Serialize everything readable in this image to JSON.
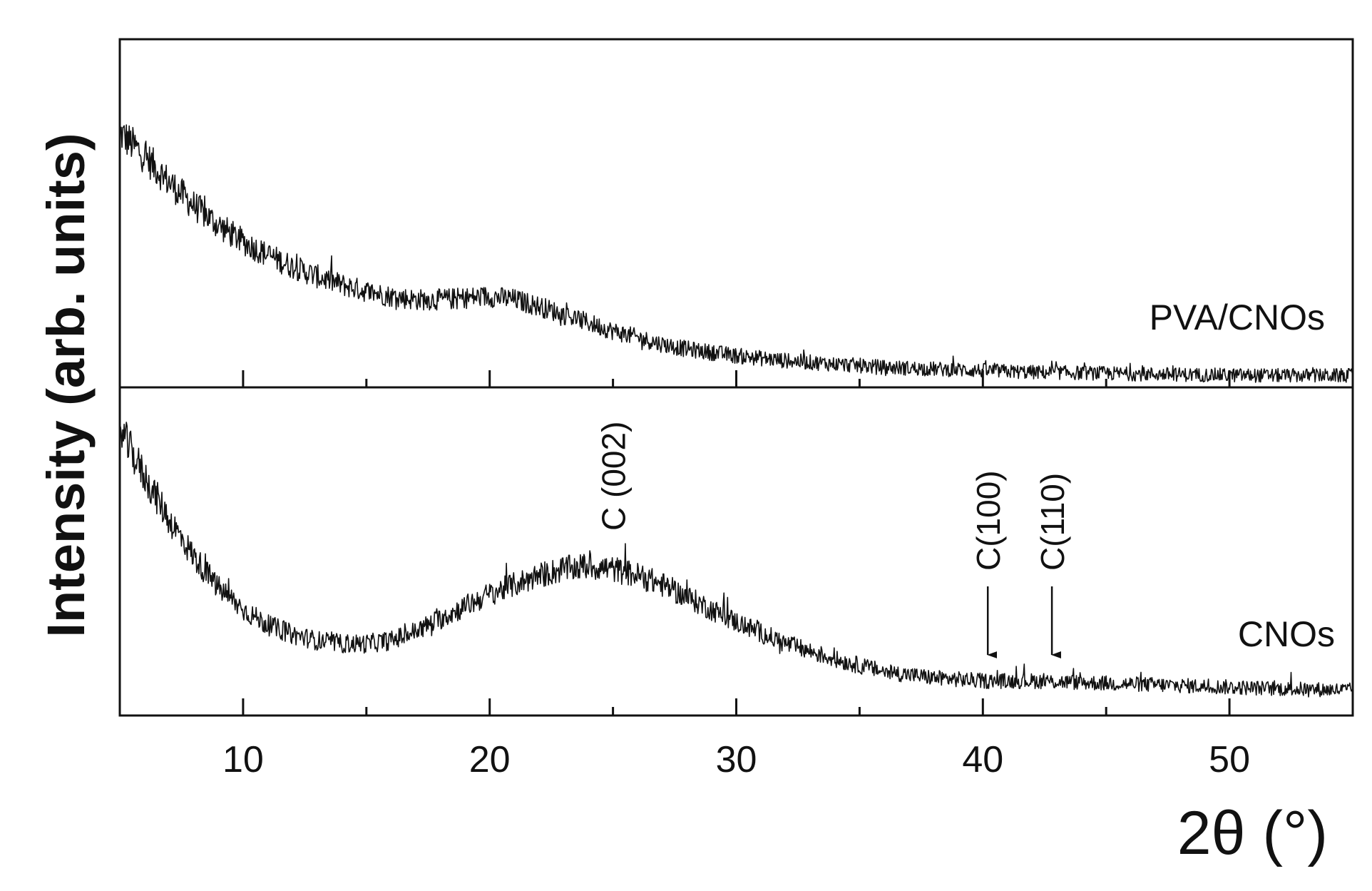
{
  "chart_data": {
    "type": "line",
    "xlabel": "2θ (°)",
    "ylabel": "Intensity (arb. units)",
    "xlim": [
      5,
      55
    ],
    "x_ticks": [
      10,
      20,
      30,
      40,
      50
    ],
    "x_tick_labels": [
      "10",
      "20",
      "30",
      "40",
      "50"
    ],
    "minor_x_ticks": [
      15,
      25,
      35,
      45
    ],
    "line_color": "#111111",
    "stacked_panels": true,
    "series": [
      {
        "name": "PVA/CNOs",
        "panel": "top",
        "ylim": [
          0,
          1
        ],
        "x": [
          5,
          6,
          7,
          8,
          9,
          10,
          11,
          12,
          13,
          14,
          15,
          16,
          17,
          18,
          19,
          20,
          21,
          22,
          23,
          24,
          25,
          26,
          27,
          28,
          29,
          30,
          32,
          34,
          36,
          38,
          40,
          42,
          44,
          46,
          48,
          50,
          52,
          55
        ],
        "y": [
          0.76,
          0.69,
          0.61,
          0.54,
          0.48,
          0.43,
          0.39,
          0.355,
          0.325,
          0.3,
          0.28,
          0.265,
          0.255,
          0.255,
          0.26,
          0.265,
          0.255,
          0.235,
          0.21,
          0.185,
          0.16,
          0.14,
          0.12,
          0.105,
          0.095,
          0.085,
          0.07,
          0.06,
          0.05,
          0.045,
          0.04,
          0.035,
          0.033,
          0.03,
          0.028,
          0.026,
          0.025,
          0.025
        ]
      },
      {
        "name": "CNOs",
        "panel": "bottom",
        "ylim": [
          0,
          1
        ],
        "x": [
          5,
          6,
          7,
          8,
          9,
          10,
          11,
          12,
          13,
          14,
          15,
          16,
          17,
          18,
          19,
          20,
          21,
          22,
          23,
          24,
          25,
          26,
          27,
          28,
          29,
          30,
          32,
          34,
          36,
          38,
          40,
          42,
          44,
          46,
          48,
          50,
          52,
          55
        ],
        "y": [
          0.91,
          0.76,
          0.62,
          0.5,
          0.4,
          0.33,
          0.28,
          0.25,
          0.23,
          0.22,
          0.22,
          0.23,
          0.26,
          0.3,
          0.34,
          0.38,
          0.41,
          0.44,
          0.46,
          0.47,
          0.46,
          0.44,
          0.41,
          0.37,
          0.33,
          0.29,
          0.22,
          0.17,
          0.13,
          0.11,
          0.1,
          0.1,
          0.095,
          0.09,
          0.085,
          0.08,
          0.075,
          0.07
        ]
      }
    ],
    "annotations": [
      {
        "text": "C (002)",
        "x": 25,
        "panel": "bottom",
        "arrow": false
      },
      {
        "text": "C(100)",
        "x": 40.2,
        "panel": "bottom",
        "arrow": true
      },
      {
        "text": "C(110)",
        "x": 42.8,
        "panel": "bottom",
        "arrow": true
      }
    ]
  }
}
